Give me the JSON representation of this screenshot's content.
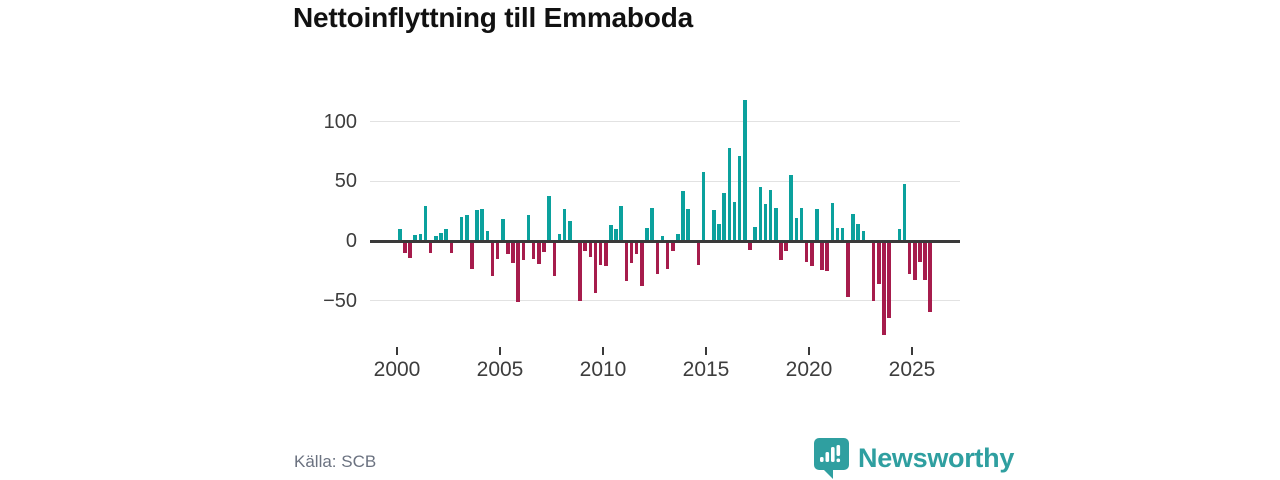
{
  "title": "Nettoinflyttning till Emmaboda",
  "source": "Källa: SCB",
  "brand": {
    "name": "Newsworthy",
    "color": "#2f9fa0",
    "icon": "newsworthy-speech-bubble-bar-chart"
  },
  "chart_data": {
    "type": "bar",
    "title": "Nettoinflyttning till Emmaboda",
    "subtitle": "",
    "unit": "net migration per quarter",
    "frequency": "quarterly",
    "grid": true,
    "legend": "none",
    "colors": {
      "positive": "#0ba19d",
      "negative": "#a61c4c",
      "axis": "#3a3a3a",
      "gridline": "#e2e2e2"
    },
    "x_axis": {
      "tick_labels": [
        "2000",
        "2005",
        "2010",
        "2015",
        "2020",
        "2025"
      ],
      "tick_years": [
        2000,
        2005,
        2010,
        2015,
        2020,
        2025
      ],
      "range_years": [
        2000,
        2026
      ]
    },
    "y_axis": {
      "tick_labels": [
        "100",
        "50",
        "0",
        "−50"
      ],
      "tick_values": [
        100,
        50,
        0,
        -50
      ],
      "range": [
        -85,
        125
      ]
    },
    "points": [
      [
        "2000Q1",
        10
      ],
      [
        "2000Q2",
        -9
      ],
      [
        "2000Q3",
        -13
      ],
      [
        "2000Q4",
        5
      ],
      [
        "2001Q1",
        6
      ],
      [
        "2001Q2",
        29
      ],
      [
        "2001Q3",
        -9
      ],
      [
        "2001Q4",
        4
      ],
      [
        "2002Q1",
        7
      ],
      [
        "2002Q2",
        10
      ],
      [
        "2002Q3",
        -9
      ],
      [
        "2002Q4",
        0
      ],
      [
        "2003Q1",
        20
      ],
      [
        "2003Q2",
        22
      ],
      [
        "2003Q3",
        -22
      ],
      [
        "2003Q4",
        26
      ],
      [
        "2004Q1",
        27
      ],
      [
        "2004Q2",
        8
      ],
      [
        "2004Q3",
        -28
      ],
      [
        "2004Q4",
        -14
      ],
      [
        "2005Q1",
        18
      ],
      [
        "2005Q2",
        -10
      ],
      [
        "2005Q3",
        -17
      ],
      [
        "2005Q4",
        -50
      ],
      [
        "2006Q1",
        -15
      ],
      [
        "2006Q2",
        22
      ],
      [
        "2006Q3",
        -14
      ],
      [
        "2006Q4",
        -18
      ],
      [
        "2007Q1",
        -8
      ],
      [
        "2007Q2",
        38
      ],
      [
        "2007Q3",
        -28
      ],
      [
        "2007Q4",
        6
      ],
      [
        "2008Q1",
        27
      ],
      [
        "2008Q2",
        17
      ],
      [
        "2008Q3",
        0
      ],
      [
        "2008Q4",
        -49
      ],
      [
        "2009Q1",
        -7
      ],
      [
        "2009Q2",
        -12
      ],
      [
        "2009Q3",
        -42
      ],
      [
        "2009Q4",
        -19
      ],
      [
        "2010Q1",
        -20
      ],
      [
        "2010Q2",
        13
      ],
      [
        "2010Q3",
        10
      ],
      [
        "2010Q4",
        29
      ],
      [
        "2011Q1",
        -32
      ],
      [
        "2011Q2",
        -17
      ],
      [
        "2011Q3",
        -10
      ],
      [
        "2011Q4",
        -36
      ],
      [
        "2012Q1",
        11
      ],
      [
        "2012Q2",
        28
      ],
      [
        "2012Q3",
        -26
      ],
      [
        "2012Q4",
        4
      ],
      [
        "2013Q1",
        -22
      ],
      [
        "2013Q2",
        -7
      ],
      [
        "2013Q3",
        6
      ],
      [
        "2013Q4",
        42
      ],
      [
        "2014Q1",
        27
      ],
      [
        "2014Q2",
        0
      ],
      [
        "2014Q3",
        -19
      ],
      [
        "2014Q4",
        58
      ],
      [
        "2015Q1",
        0
      ],
      [
        "2015Q2",
        26
      ],
      [
        "2015Q3",
        14
      ],
      [
        "2015Q4",
        40
      ],
      [
        "2016Q1",
        78
      ],
      [
        "2016Q2",
        33
      ],
      [
        "2016Q3",
        71
      ],
      [
        "2016Q4",
        118
      ],
      [
        "2017Q1",
        -6
      ],
      [
        "2017Q2",
        12
      ],
      [
        "2017Q3",
        45
      ],
      [
        "2017Q4",
        31
      ],
      [
        "2018Q1",
        43
      ],
      [
        "2018Q2",
        28
      ],
      [
        "2018Q3",
        -15
      ],
      [
        "2018Q4",
        -7
      ],
      [
        "2019Q1",
        55
      ],
      [
        "2019Q2",
        19
      ],
      [
        "2019Q3",
        28
      ],
      [
        "2019Q4",
        -16
      ],
      [
        "2020Q1",
        -20
      ],
      [
        "2020Q2",
        27
      ],
      [
        "2020Q3",
        -23
      ],
      [
        "2020Q4",
        -24
      ],
      [
        "2021Q1",
        32
      ],
      [
        "2021Q2",
        11
      ],
      [
        "2021Q3",
        11
      ],
      [
        "2021Q4",
        -46
      ],
      [
        "2022Q1",
        23
      ],
      [
        "2022Q2",
        14
      ],
      [
        "2022Q3",
        8
      ],
      [
        "2022Q4",
        0
      ],
      [
        "2023Q1",
        -49
      ],
      [
        "2023Q2",
        -35
      ],
      [
        "2023Q3",
        -77
      ],
      [
        "2023Q4",
        -63
      ],
      [
        "2024Q1",
        0
      ],
      [
        "2024Q2",
        10
      ],
      [
        "2024Q3",
        48
      ],
      [
        "2024Q4",
        -26
      ],
      [
        "2025Q1",
        -31
      ],
      [
        "2025Q2",
        -16
      ],
      [
        "2025Q3",
        -31
      ],
      [
        "2025Q4",
        -58
      ]
    ]
  }
}
